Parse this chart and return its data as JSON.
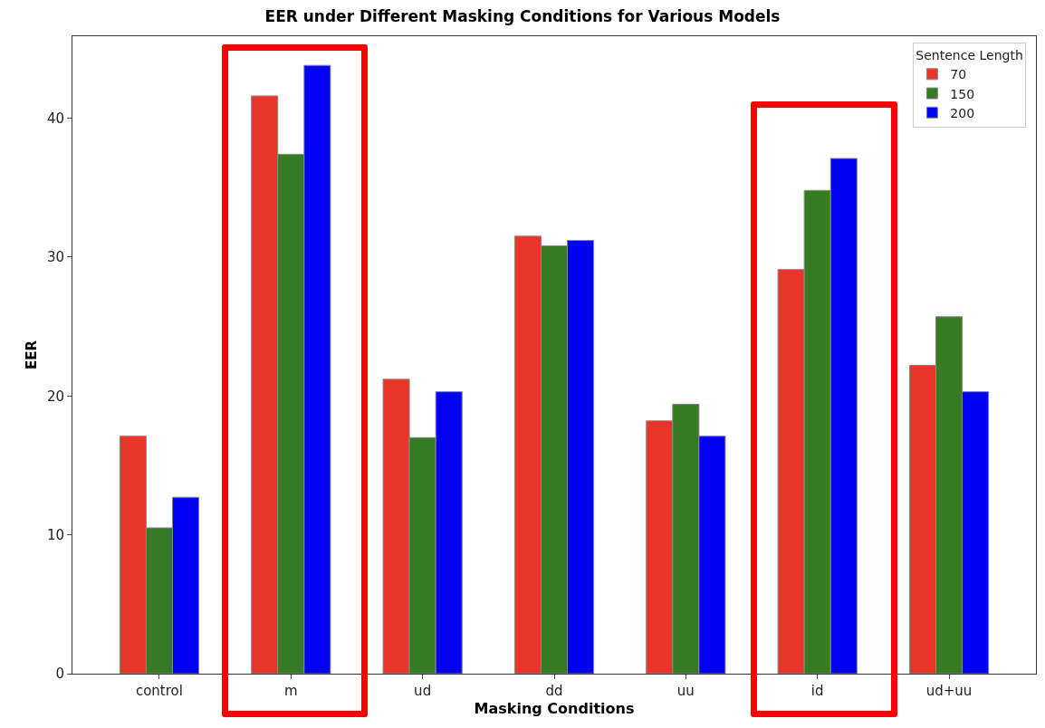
{
  "chart_data": {
    "type": "bar",
    "title": "EER under Different Masking Conditions for Various Models",
    "xlabel": "Masking Conditions",
    "ylabel": "EER",
    "legend_title": "Sentence Length",
    "categories": [
      "control",
      "m",
      "ud",
      "dd",
      "uu",
      "id",
      "ud+uu"
    ],
    "series": [
      {
        "name": "70",
        "color": "#e8352a",
        "values": [
          17.1,
          41.6,
          21.2,
          31.5,
          18.2,
          29.1,
          22.2
        ]
      },
      {
        "name": "150",
        "color": "#367a23",
        "values": [
          10.5,
          37.4,
          17.0,
          30.8,
          19.4,
          34.8,
          25.7
        ]
      },
      {
        "name": "200",
        "color": "#0000f5",
        "values": [
          12.7,
          43.8,
          20.3,
          31.2,
          17.1,
          37.1,
          20.3
        ]
      }
    ],
    "ylim": [
      0,
      45.9
    ],
    "yticks": [
      0,
      10,
      20,
      30,
      40
    ],
    "grid": false,
    "legend": "top right"
  }
}
